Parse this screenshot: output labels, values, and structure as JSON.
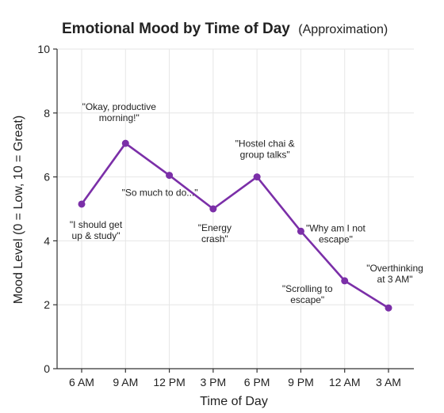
{
  "chart_data": {
    "type": "line",
    "title": "Emotional Mood by Time of Day",
    "subtitle": "(Approximation)",
    "xlabel": "Time of Day",
    "ylabel": "Mood Level (0 = Low, 10 = Great)",
    "ylim": [
      0,
      10
    ],
    "yticks": [
      "0",
      "2",
      "4",
      "6",
      "8",
      "10"
    ],
    "categories": [
      "6 AM",
      "9 AM",
      "12 PM",
      "3 PM",
      "6 PM",
      "9 PM",
      "12 AM",
      "3 AM"
    ],
    "values": [
      5.15,
      7.05,
      6.05,
      5.0,
      6.0,
      4.3,
      2.75,
      1.9
    ],
    "grid": true,
    "line_color": "#7b2fa8",
    "annotations": [
      {
        "category": "6 AM",
        "lines": [
          "\"I should get",
          "up & study\""
        ]
      },
      {
        "category": "9 AM",
        "lines": [
          "\"Okay, productive",
          "morning!\""
        ]
      },
      {
        "category": "12 PM",
        "lines": [
          "\"So much to do...\""
        ]
      },
      {
        "category": "3 PM",
        "lines": [
          "\"Energy",
          "crash\""
        ]
      },
      {
        "category": "6 PM",
        "lines": [
          "\"Hostel chai &",
          "group talks\""
        ]
      },
      {
        "category": "9 PM",
        "lines": [
          "\"Why am I not",
          "escape\""
        ]
      },
      {
        "category": "12 AM",
        "lines": [
          "\"Scrolling to",
          "escape\""
        ]
      },
      {
        "category": "3 AM",
        "lines": [
          "\"Overthinking",
          "at 3 AM\""
        ]
      }
    ]
  }
}
